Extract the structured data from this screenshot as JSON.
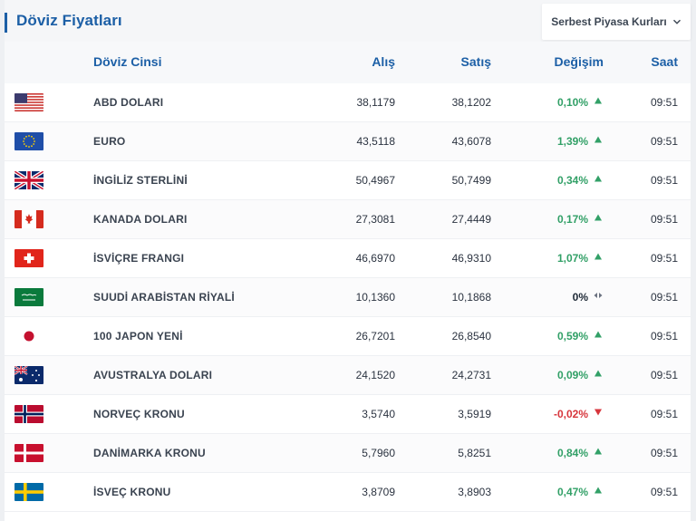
{
  "header": {
    "title": "Döviz Fiyatları",
    "market_select": "Serbest Piyasa Kurları"
  },
  "columns": {
    "name": "Döviz Cinsi",
    "buy": "Alış",
    "sell": "Satış",
    "change": "Değişim",
    "time": "Saat"
  },
  "colors": {
    "accent": "#1c5fa6",
    "up": "#32a067",
    "down": "#d7363c"
  },
  "rows": [
    {
      "flag": "us-flag",
      "name": "ABD DOLARI",
      "buy": "38,1179",
      "sell": "38,1202",
      "change": "0,10%",
      "trend": "up",
      "time": "09:51"
    },
    {
      "flag": "eu-flag",
      "name": "EURO",
      "buy": "43,5118",
      "sell": "43,6078",
      "change": "1,39%",
      "trend": "up",
      "time": "09:51"
    },
    {
      "flag": "gb-flag",
      "name": "İNGİLİZ STERLİNİ",
      "buy": "50,4967",
      "sell": "50,7499",
      "change": "0,34%",
      "trend": "up",
      "time": "09:51"
    },
    {
      "flag": "ca-flag",
      "name": "KANADA DOLARI",
      "buy": "27,3081",
      "sell": "27,4449",
      "change": "0,17%",
      "trend": "up",
      "time": "09:51"
    },
    {
      "flag": "ch-flag",
      "name": "İSVİÇRE FRANGI",
      "buy": "46,6970",
      "sell": "46,9310",
      "change": "1,07%",
      "trend": "up",
      "time": "09:51"
    },
    {
      "flag": "sa-flag",
      "name": "SUUDİ ARABİSTAN RİYALİ",
      "buy": "10,1360",
      "sell": "10,1868",
      "change": "0%",
      "trend": "flat",
      "time": "09:51"
    },
    {
      "flag": "jp-flag",
      "name": "100 JAPON YENİ",
      "buy": "26,7201",
      "sell": "26,8540",
      "change": "0,59%",
      "trend": "up",
      "time": "09:51"
    },
    {
      "flag": "au-flag",
      "name": "AVUSTRALYA DOLARI",
      "buy": "24,1520",
      "sell": "24,2731",
      "change": "0,09%",
      "trend": "up",
      "time": "09:51"
    },
    {
      "flag": "no-flag",
      "name": "NORVEÇ KRONU",
      "buy": "3,5740",
      "sell": "3,5919",
      "change": "-0,02%",
      "trend": "down",
      "time": "09:51"
    },
    {
      "flag": "dk-flag",
      "name": "DANİMARKA KRONU",
      "buy": "5,7960",
      "sell": "5,8251",
      "change": "0,84%",
      "trend": "up",
      "time": "09:51"
    },
    {
      "flag": "se-flag",
      "name": "İSVEÇ KRONU",
      "buy": "3,8709",
      "sell": "3,8903",
      "change": "0,47%",
      "trend": "up",
      "time": "09:51"
    }
  ]
}
